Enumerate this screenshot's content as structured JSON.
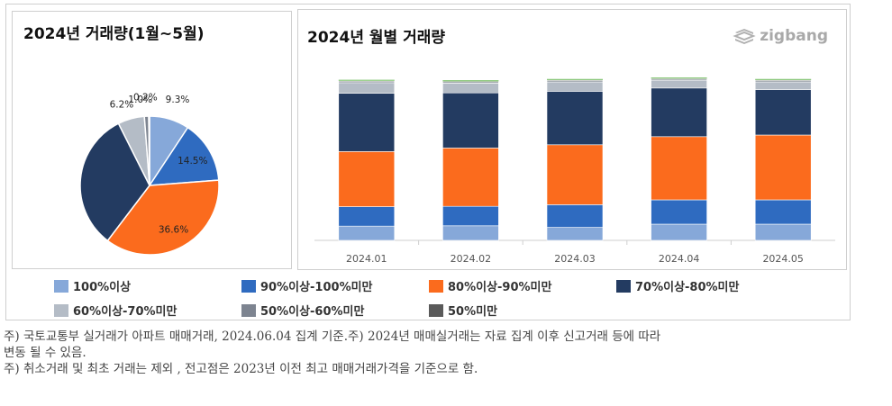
{
  "logo": {
    "text": "zigbang",
    "icon": "zigbang-logo-icon"
  },
  "pie": {
    "title": "2024년 거래량(1월~5월)"
  },
  "bars": {
    "title": "2024년 월별 거래량"
  },
  "colors": {
    "100%이상": "#86a8d9",
    "90%이상-100%미만": "#2f6bc0",
    "80%이상-90%미만": "#fb6b1d",
    "70%이상-80%미만": "#233b61",
    "60%이상-70%미만": "#b4bcc6",
    "50%이상-60%미만": "#7d8490",
    "50%미만": "#5a5a5a"
  },
  "chart_data": [
    {
      "type": "pie",
      "title": "2024년 거래량(1월~5월)",
      "slices": [
        {
          "label": "100%이상",
          "value": 9.3,
          "data_label": "9.3%"
        },
        {
          "label": "90%이상-100%미만",
          "value": 14.5,
          "data_label": "14.5%"
        },
        {
          "label": "80%이상-90%미만",
          "value": 36.6,
          "data_label": "36.6%"
        },
        {
          "label": "70%이상-80%미만",
          "value": 32.3,
          "data_label": ""
        },
        {
          "label": "60%이상-70%미만",
          "value": 6.2,
          "data_label": "6.2%"
        },
        {
          "label": "50%이상-60%미만",
          "value": 1.0,
          "data_label": "1.0%"
        },
        {
          "label": "50%미만",
          "value": 0.2,
          "data_label": "0.2%"
        }
      ]
    },
    {
      "type": "bar",
      "stacked": true,
      "title": "2024년 월별 거래량",
      "categories": [
        "2024.01",
        "2024.02",
        "2024.03",
        "2024.04",
        "2024.05"
      ],
      "series": [
        {
          "name": "100%이상",
          "values": [
            8.8,
            9.0,
            8.0,
            10.0,
            10.0
          ]
        },
        {
          "name": "90%이상-100%미만",
          "values": [
            12.0,
            12.0,
            14.0,
            15.0,
            15.0
          ]
        },
        {
          "name": "80%이상-90%미만",
          "values": [
            34.0,
            36.0,
            37.0,
            39.0,
            40.0
          ]
        },
        {
          "name": "70%이상-80%미만",
          "values": [
            36.0,
            34.0,
            33.0,
            30.0,
            28.0
          ]
        },
        {
          "name": "60%이상-70%미만",
          "values": [
            6.5,
            6.0,
            5.8,
            4.8,
            4.8
          ]
        },
        {
          "name": "50%이상-60%미만",
          "values": [
            1.0,
            1.0,
            1.0,
            0.9,
            1.0
          ]
        },
        {
          "name": "50%미만",
          "values": [
            0.2,
            0.2,
            0.2,
            0.2,
            0.2
          ]
        }
      ],
      "ylim": [
        0,
        100
      ],
      "grid": false,
      "legend": "bottom"
    }
  ],
  "legend": [
    {
      "label": "100%이상",
      "color": "#86a8d9"
    },
    {
      "label": "90%이상-100%미만",
      "color": "#2f6bc0"
    },
    {
      "label": "80%이상-90%미만",
      "color": "#fb6b1d"
    },
    {
      "label": "70%이상-80%미만",
      "color": "#233b61"
    },
    {
      "label": "60%이상-70%미만",
      "color": "#b4bcc6"
    },
    {
      "label": "50%이상-60%미만",
      "color": "#7d8490"
    },
    {
      "label": "50%미만",
      "color": "#5a5a5a"
    }
  ],
  "notes": [
    "주) 국토교통부 실거래가 아파트 매매거래, 2024.06.04 집계 기준.주) 2024년 매매실거래는 자료 집계 이후 신고거래 등에 따라",
    "변동 될 수 있음.",
    "주) 취소거래 및 최초 거래는 제외 , 전고점은 2023년 이전 최고 매매거래가격을 기준으로 함."
  ]
}
